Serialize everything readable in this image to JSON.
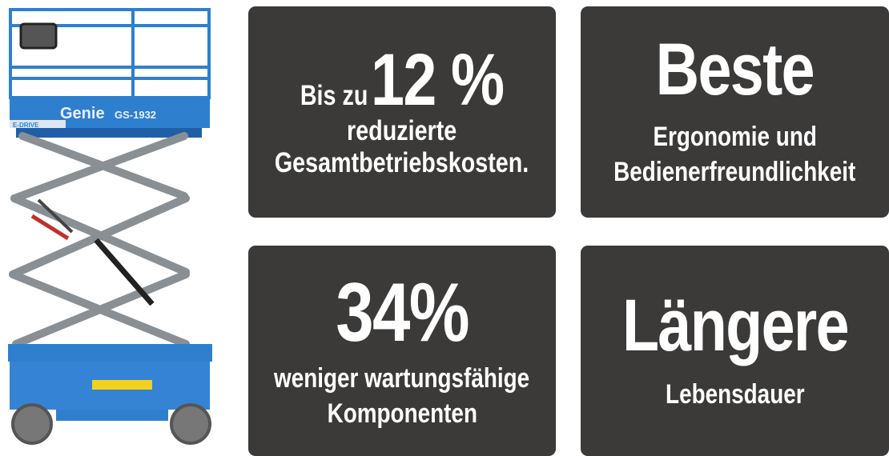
{
  "lift": {
    "brand": "Genie",
    "model": "GS-1932",
    "badge": "E-DRIVE",
    "colors": {
      "body": "#2f7fcf",
      "scissor": "#8a8f94"
    }
  },
  "cards": [
    {
      "prefix": "Bis zu",
      "headline": "12 %",
      "lines": [
        "reduzierte",
        "Gesamtbetriebskosten."
      ]
    },
    {
      "headline": "Beste",
      "lines": [
        "Ergonomie und",
        "Bedienerfreundlichkeit"
      ]
    },
    {
      "headline": "34%",
      "lines": [
        "weniger wartungsfähige",
        "Komponenten"
      ]
    },
    {
      "headline": "Längere",
      "lines": [
        "Lebensdauer"
      ]
    }
  ],
  "colors": {
    "card": "#3b3a39",
    "text": "#ffffff"
  }
}
